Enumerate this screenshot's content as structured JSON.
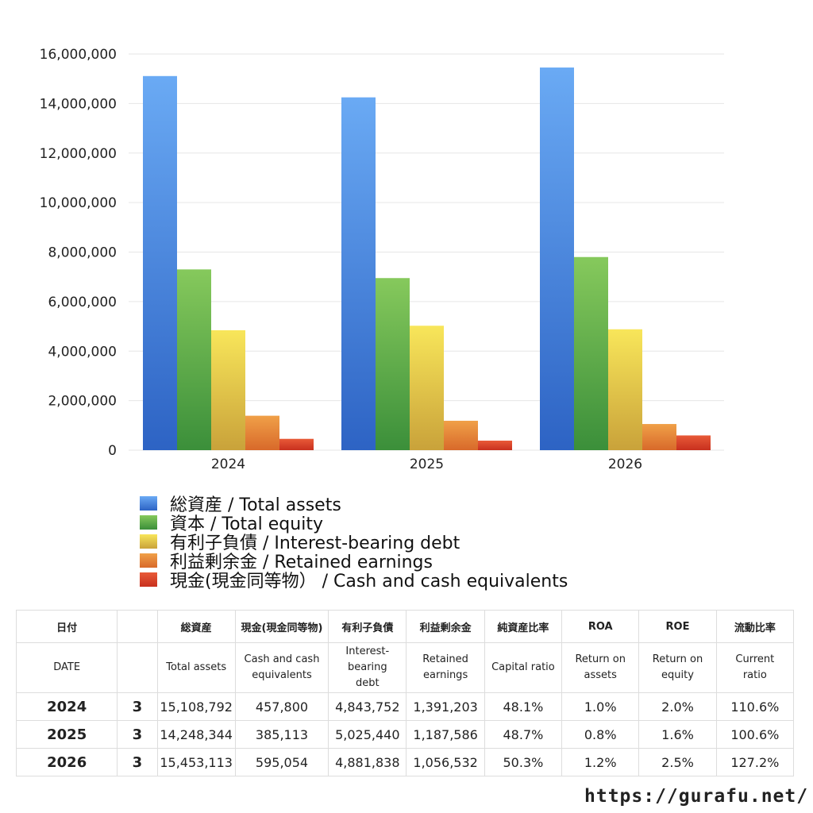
{
  "chart_data": {
    "type": "bar",
    "categories": [
      "2024",
      "2025",
      "2026"
    ],
    "ylim": [
      0,
      16000000
    ],
    "yticks": [
      0,
      2000000,
      4000000,
      6000000,
      8000000,
      10000000,
      12000000,
      14000000,
      16000000
    ],
    "ytick_labels": [
      "0",
      "2,000,000",
      "4,000,000",
      "6,000,000",
      "8,000,000",
      "10,000,000",
      "12,000,000",
      "14,000,000",
      "16,000,000"
    ],
    "grid": true,
    "legend_position": "bottom",
    "series": [
      {
        "name": "総資産 / Total assets",
        "values": [
          15108792,
          14248344,
          15453113
        ],
        "color_top": "#6aaaf4",
        "color_bottom": "#2d63c4"
      },
      {
        "name": "資本 / Total equity",
        "values": [
          7300000,
          6950000,
          7800000
        ],
        "color_top": "#86c95c",
        "color_bottom": "#3b8f3a"
      },
      {
        "name": "有利子負債 / Interest-bearing debt",
        "values": [
          4843752,
          5025440,
          4881838
        ],
        "color_top": "#f8e65a",
        "color_bottom": "#c9a23a"
      },
      {
        "name": "利益剰余金 / Retained earnings",
        "values": [
          1391203,
          1187586,
          1056532
        ],
        "color_top": "#f0a048",
        "color_bottom": "#d8692a"
      },
      {
        "name": "現金(現金同等物） /  Cash and cash equivalents",
        "values": [
          457800,
          385113,
          595054
        ],
        "color_top": "#e85a38",
        "color_bottom": "#c8301e"
      }
    ]
  },
  "table": {
    "header_jp": [
      "日付",
      "",
      "総資産",
      "現金(現金同等物)",
      "有利子負債",
      "利益剰余金",
      "純資産比率",
      "ROA",
      "ROE",
      "流動比率"
    ],
    "header_en": [
      [
        "DATE"
      ],
      [
        ""
      ],
      [
        "Total assets"
      ],
      [
        "Cash and cash",
        "equivalents"
      ],
      [
        "Interest-",
        "bearing",
        "debt"
      ],
      [
        "Retained",
        "earnings"
      ],
      [
        "Capital ratio"
      ],
      [
        "Return on",
        "assets"
      ],
      [
        "Return on",
        "equity"
      ],
      [
        "Current",
        "ratio"
      ]
    ],
    "rows": [
      [
        "2024",
        "3",
        "15,108,792",
        "457,800",
        "4,843,752",
        "1,391,203",
        "48.1%",
        "1.0%",
        "2.0%",
        "110.6%"
      ],
      [
        "2025",
        "3",
        "14,248,344",
        "385,113",
        "5,025,440",
        "1,187,586",
        "48.7%",
        "0.8%",
        "1.6%",
        "100.6%"
      ],
      [
        "2026",
        "3",
        "15,453,113",
        "595,054",
        "4,881,838",
        "1,056,532",
        "50.3%",
        "1.2%",
        "2.5%",
        "127.2%"
      ]
    ]
  },
  "footer": {
    "site": "https://gurafu.net/"
  }
}
